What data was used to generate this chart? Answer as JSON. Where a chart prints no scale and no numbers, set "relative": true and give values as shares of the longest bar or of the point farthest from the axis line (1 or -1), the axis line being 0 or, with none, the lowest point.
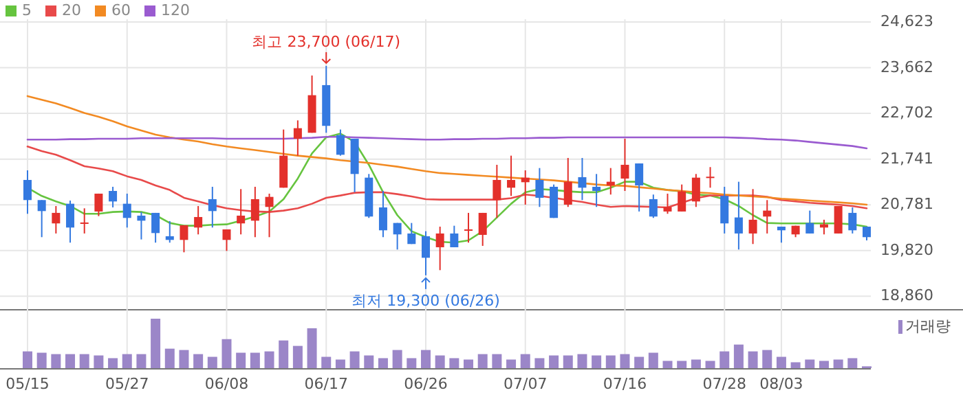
{
  "chart_data": [
    {
      "type": "candlestick",
      "categories": [
        "05/15",
        null,
        null,
        null,
        null,
        null,
        null,
        "05/27",
        null,
        null,
        null,
        null,
        null,
        null,
        "06/08",
        null,
        null,
        null,
        null,
        null,
        null,
        "06/17",
        null,
        null,
        null,
        null,
        null,
        null,
        "06/26",
        null,
        null,
        null,
        null,
        null,
        null,
        "07/07",
        null,
        null,
        null,
        null,
        null,
        null,
        "07/16",
        null,
        null,
        null,
        null,
        null,
        null,
        "07/28",
        null,
        null,
        null,
        "08/03",
        null,
        null,
        null,
        null,
        null,
        null
      ],
      "ohlc": [
        [
          21304,
          21506,
          20593,
          20881
        ],
        [
          20881,
          20881,
          20102,
          20650
        ],
        [
          20391,
          20756,
          20179,
          20612
        ],
        [
          20804,
          20871,
          19987,
          20304
        ],
        [
          20381,
          20708,
          20179,
          20410
        ],
        [
          20641,
          21016,
          20544,
          21016
        ],
        [
          21073,
          21160,
          20727,
          20852
        ],
        [
          20804,
          21016,
          20304,
          20506
        ],
        [
          20554,
          20631,
          20054,
          20448
        ],
        [
          20612,
          20612,
          19987,
          20188
        ],
        [
          20121,
          20439,
          19987,
          20044
        ],
        [
          20044,
          20352,
          19784,
          20352
        ],
        [
          20304,
          20756,
          20160,
          20525
        ],
        [
          20900,
          21160,
          20304,
          20650
        ],
        [
          20044,
          20265,
          19813,
          20265
        ],
        [
          20391,
          21112,
          20160,
          20554
        ],
        [
          20448,
          21160,
          20102,
          20900
        ],
        [
          20737,
          21016,
          20102,
          20948
        ],
        [
          21141,
          22363,
          21141,
          21814
        ],
        [
          22170,
          22555,
          21814,
          22391
        ],
        [
          22295,
          23498,
          22295,
          23084
        ],
        [
          23296,
          23700,
          22295,
          22440
        ],
        [
          22247,
          22363,
          21814,
          21833
        ],
        [
          22170,
          22170,
          21045,
          21429
        ],
        [
          21352,
          21429,
          20506,
          20535
        ],
        [
          20727,
          21073,
          20102,
          20246
        ],
        [
          20400,
          20400,
          19842,
          20160
        ],
        [
          20179,
          20400,
          19958,
          19958
        ],
        [
          20121,
          20227,
          19300,
          19669
        ],
        [
          19890,
          20323,
          19409,
          20179
        ],
        [
          20179,
          20342,
          19890,
          19890
        ],
        [
          20246,
          20612,
          19987,
          20265
        ],
        [
          20150,
          20612,
          19919,
          20612
        ],
        [
          20881,
          21622,
          20506,
          21304
        ],
        [
          21141,
          21814,
          20968,
          21304
        ],
        [
          21256,
          21506,
          20785,
          21352
        ],
        [
          21304,
          21554,
          20737,
          20929
        ],
        [
          21160,
          21208,
          20506,
          20506
        ],
        [
          20785,
          21766,
          20737,
          21266
        ],
        [
          21362,
          21766,
          20881,
          21141
        ],
        [
          21160,
          21429,
          20737,
          21073
        ],
        [
          21189,
          21554,
          20997,
          21266
        ],
        [
          21333,
          22170,
          21073,
          21622
        ],
        [
          21651,
          21651,
          20641,
          21189
        ],
        [
          20900,
          20997,
          20506,
          20535
        ],
        [
          20641,
          21016,
          20593,
          20737
        ],
        [
          20641,
          21208,
          20641,
          21064
        ],
        [
          20852,
          21429,
          20737,
          21352
        ],
        [
          21352,
          21574,
          21141,
          21372
        ],
        [
          20968,
          21160,
          20179,
          20391
        ],
        [
          20516,
          21266,
          19842,
          20179
        ],
        [
          20179,
          21112,
          19958,
          20468
        ],
        [
          20535,
          20881,
          20179,
          20660
        ],
        [
          20323,
          20323,
          19987,
          20246
        ],
        [
          20160,
          20342,
          20102,
          20342
        ],
        [
          20400,
          20660,
          20179,
          20179
        ],
        [
          20304,
          20468,
          20160,
          20371
        ],
        [
          20179,
          20756,
          20179,
          20756
        ],
        [
          20612,
          20727,
          20179,
          20246
        ],
        [
          20323,
          20323,
          20035,
          20102
        ]
      ],
      "series": [
        {
          "name": "5",
          "type": "line",
          "color": "#66c43f",
          "values": [
            21141,
            20968,
            20852,
            20756,
            20592,
            20592,
            20631,
            20641,
            20631,
            20564,
            20400,
            20342,
            20342,
            20362,
            20371,
            20448,
            20535,
            20641,
            20900,
            21333,
            21862,
            22199,
            22276,
            22103,
            21622,
            21045,
            20564,
            20227,
            20102,
            20006,
            19986,
            20034,
            20227,
            20515,
            20804,
            21045,
            21112,
            21093,
            21064,
            21045,
            21045,
            21141,
            21266,
            21266,
            21141,
            21093,
            21064,
            20996,
            20977,
            20900,
            20756,
            20564,
            20400,
            20390,
            20390,
            20390,
            20390,
            20390,
            20371,
            20323
          ]
        },
        {
          "name": "20",
          "type": "line",
          "color": "#e84a4a",
          "values": [
            22007,
            21910,
            21833,
            21718,
            21593,
            21545,
            21487,
            21381,
            21304,
            21189,
            21093,
            20929,
            20852,
            20775,
            20708,
            20669,
            20641,
            20631,
            20660,
            20708,
            20804,
            20929,
            20977,
            21035,
            21045,
            21045,
            21006,
            20958,
            20900,
            20891,
            20891,
            20891,
            20891,
            20891,
            20920,
            20996,
            20968,
            20929,
            20881,
            20843,
            20785,
            20737,
            20756,
            20746,
            20737,
            20727,
            20823,
            20920,
            20977,
            20977,
            20977,
            20977,
            20948,
            20881,
            20852,
            20823,
            20804,
            20785,
            20756,
            20708
          ]
        },
        {
          "name": "60",
          "type": "line",
          "color": "#f28a22",
          "values": [
            23065,
            22988,
            22911,
            22815,
            22709,
            22632,
            22536,
            22430,
            22343,
            22257,
            22199,
            22151,
            22112,
            22055,
            22007,
            21968,
            21930,
            21891,
            21853,
            21814,
            21785,
            21756,
            21718,
            21689,
            21660,
            21622,
            21583,
            21535,
            21487,
            21449,
            21429,
            21410,
            21391,
            21372,
            21352,
            21333,
            21314,
            21295,
            21266,
            21237,
            21208,
            21189,
            21179,
            21150,
            21122,
            21093,
            21073,
            21045,
            21025,
            20996,
            20977,
            20958,
            20939,
            20910,
            20891,
            20871,
            20852,
            20833,
            20814,
            20785
          ]
        },
        {
          "name": "120",
          "type": "line",
          "color": "#9a5bd0",
          "values": [
            22151,
            22151,
            22151,
            22161,
            22161,
            22170,
            22170,
            22170,
            22180,
            22180,
            22180,
            22180,
            22180,
            22180,
            22170,
            22170,
            22170,
            22170,
            22170,
            22180,
            22189,
            22209,
            22209,
            22199,
            22189,
            22180,
            22170,
            22161,
            22151,
            22151,
            22161,
            22161,
            22170,
            22170,
            22180,
            22180,
            22189,
            22189,
            22199,
            22199,
            22199,
            22199,
            22199,
            22199,
            22199,
            22199,
            22199,
            22199,
            22199,
            22199,
            22189,
            22180,
            22161,
            22151,
            22132,
            22103,
            22074,
            22045,
            22016,
            21968
          ]
        }
      ],
      "ylim": [
        18591,
        24680
      ],
      "yticks": [
        {
          "value": 18860,
          "label": "18,860"
        },
        {
          "value": 19820,
          "label": "19,820"
        },
        {
          "value": 20781,
          "label": "20,781"
        },
        {
          "value": 21741,
          "label": "21,741"
        },
        {
          "value": 22702,
          "label": "22,702"
        },
        {
          "value": 23662,
          "label": "23,662"
        },
        {
          "value": 24623,
          "label": "24,623"
        }
      ],
      "annotations": [
        {
          "text": "최고 23,700 (06/17)",
          "x": "06/17",
          "y": 23700
        },
        {
          "text": "최저 19,300 (06/26)",
          "x": "06/26",
          "y": 19300
        }
      ],
      "grid": true,
      "legend": "top left",
      "tick_labels": "y"
    },
    {
      "type": "bar",
      "relative": true,
      "categories": [
        "05/15",
        null,
        null,
        null,
        null,
        null,
        null,
        "05/27",
        null,
        null,
        null,
        null,
        null,
        null,
        "06/08",
        null,
        null,
        null,
        null,
        null,
        null,
        "06/17",
        null,
        null,
        null,
        null,
        null,
        null,
        "06/26",
        null,
        null,
        null,
        null,
        null,
        null,
        "07/07",
        null,
        null,
        null,
        null,
        null,
        null,
        "07/16",
        null,
        null,
        null,
        null,
        null,
        null,
        "07/28",
        null,
        null,
        null,
        "08/03",
        null,
        null,
        null,
        null,
        null,
        null
      ],
      "series": [
        {
          "name": "거래량",
          "color": "#9b86c8",
          "values": [
            0.339,
            0.312,
            0.284,
            0.284,
            0.284,
            0.257,
            0.202,
            0.284,
            0.284,
            1,
            0.394,
            0.367,
            0.284,
            0.229,
            0.587,
            0.312,
            0.312,
            0.339,
            0.56,
            0.45,
            0.807,
            0.229,
            0.174,
            0.339,
            0.257,
            0.202,
            0.367,
            0.202,
            0.367,
            0.257,
            0.202,
            0.174,
            0.284,
            0.284,
            0.174,
            0.284,
            0.202,
            0.257,
            0.257,
            0.284,
            0.257,
            0.257,
            0.284,
            0.229,
            0.312,
            0.147,
            0.147,
            0.174,
            0.147,
            0.339,
            0.477,
            0.339,
            0.367,
            0.229,
            0.119,
            0.174,
            0.147,
            0.174,
            0.202,
            0.037
          ]
        }
      ],
      "grid": "x",
      "legend": "top right",
      "tick_labels": "x"
    }
  ]
}
